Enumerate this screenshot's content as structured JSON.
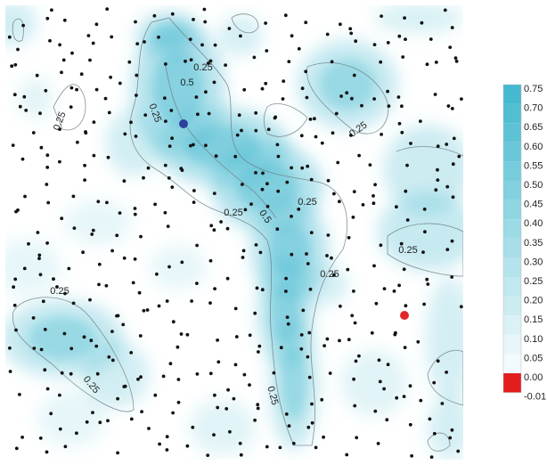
{
  "chart_data": {
    "type": "heatmap",
    "title": "",
    "xlabel": "",
    "ylabel": "",
    "colormap": {
      "low_color": "#ffffff",
      "high_color": "#45b9cf",
      "negative_color": "#e31d1d"
    },
    "colorbar": {
      "position": "right",
      "ticks": [
        "0.75",
        "0.70",
        "0.65",
        "0.60",
        "0.55",
        "0.50",
        "0.45",
        "0.40",
        "0.35",
        "0.30",
        "0.25",
        "0.20",
        "0.15",
        "0.10",
        "0.05",
        "0.00",
        "-0.01"
      ]
    },
    "contour_levels": [
      0.25,
      0.5
    ],
    "contour_labels": [
      {
        "text": "0.25"
      },
      {
        "text": "0.5"
      },
      {
        "text": "0.25"
      },
      {
        "text": "0.25"
      },
      {
        "text": "0.25"
      },
      {
        "text": "0.25"
      },
      {
        "text": "0.5"
      },
      {
        "text": "0.25"
      },
      {
        "text": "0.25"
      },
      {
        "text": "0.25"
      },
      {
        "text": "0.25"
      },
      {
        "text": "0.25"
      },
      {
        "text": "0.25"
      }
    ],
    "highlighted_points": [
      {
        "name": "",
        "color": "#2c3f9e"
      },
      {
        "name": "",
        "color": "#e3262a"
      }
    ],
    "sample_points": "scattered black sample locations across the field"
  }
}
